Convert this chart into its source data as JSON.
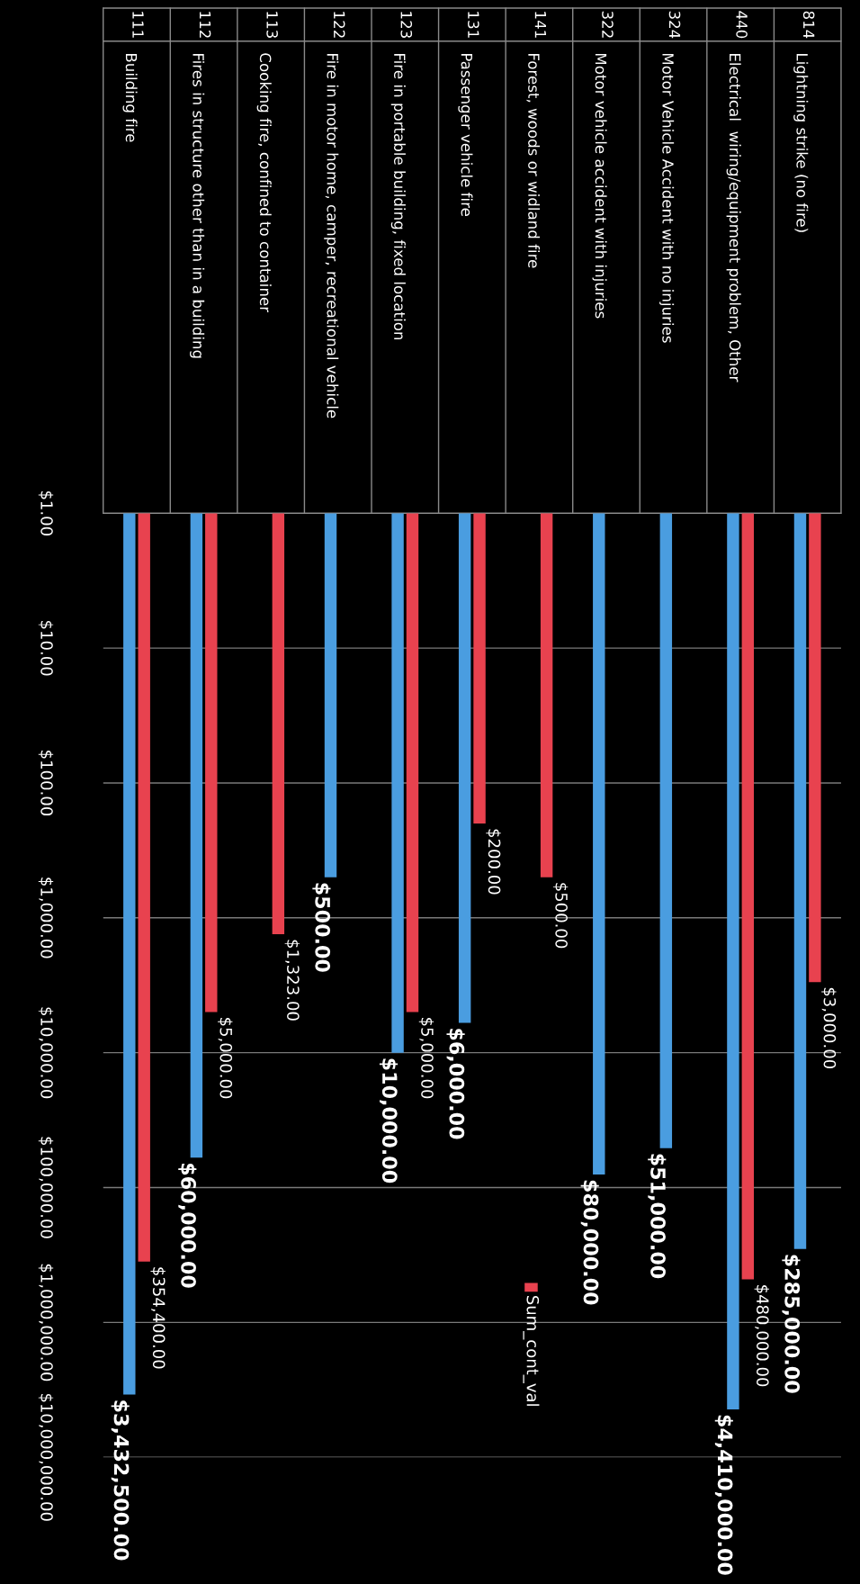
{
  "chart_data": {
    "type": "bar",
    "categories": [
      "111\nBuilding fire",
      "112\nFires in structure other than in a building",
      "113\nCooking fire, confined to container",
      "122\nFire in motor home, camper, recreational vehicle",
      "123\nFire in portable building, fixed location",
      "131\nPassenger vehicle fire",
      "141\nForest, woods or widland fire",
      "322\nMotor vehicle accident with injuries",
      "324\nMotor Vehicle Accident with no injuries",
      "440\nElectrical  wiring/equipment problem, Other",
      "814\nLightning strike (no fire)"
    ],
    "series": [
      {
        "color": "#4a9de0",
        "values": [
          3432500,
          60000,
          null,
          500,
          10000,
          6000,
          null,
          80000,
          51000,
          4410000,
          285000
        ],
        "value_labels": [
          "$3,432,500.00",
          "$60,000.00",
          null,
          "$500.00",
          "$10,000.00",
          "$6,000.00",
          null,
          "$80,000.00",
          "$51,000.00",
          "$4,410,000.00",
          "$285,000.00"
        ]
      },
      {
        "name": "Sum_cont_val",
        "color": "#e8424f",
        "values": [
          354400,
          5000,
          1323,
          null,
          5000,
          200,
          500,
          null,
          null,
          480000,
          3000
        ],
        "value_labels": [
          "$354,400.00",
          "$5,000.00",
          "$1,323.00",
          null,
          "$5,000.00",
          "$200.00",
          "$500.00",
          null,
          null,
          "$480,000.00",
          "$3,000.00"
        ]
      }
    ],
    "log": true,
    "ylim": [
      10000000,
      1
    ],
    "yticks": [
      {
        "value": 1,
        "label": "$1.00"
      },
      {
        "value": 10,
        "label": "$10.00"
      },
      {
        "value": 100,
        "label": "$100.00"
      },
      {
        "value": 1000,
        "label": "$1,000.00"
      },
      {
        "value": 10000,
        "label": "$10,000.00"
      },
      {
        "value": 100000,
        "label": "$100,000.00"
      },
      {
        "value": 1000000,
        "label": "$1,000,000.00"
      },
      {
        "value": 10000000,
        "label": "$10,000,000.00"
      }
    ],
    "grid": "y",
    "legend": "bottom"
  }
}
